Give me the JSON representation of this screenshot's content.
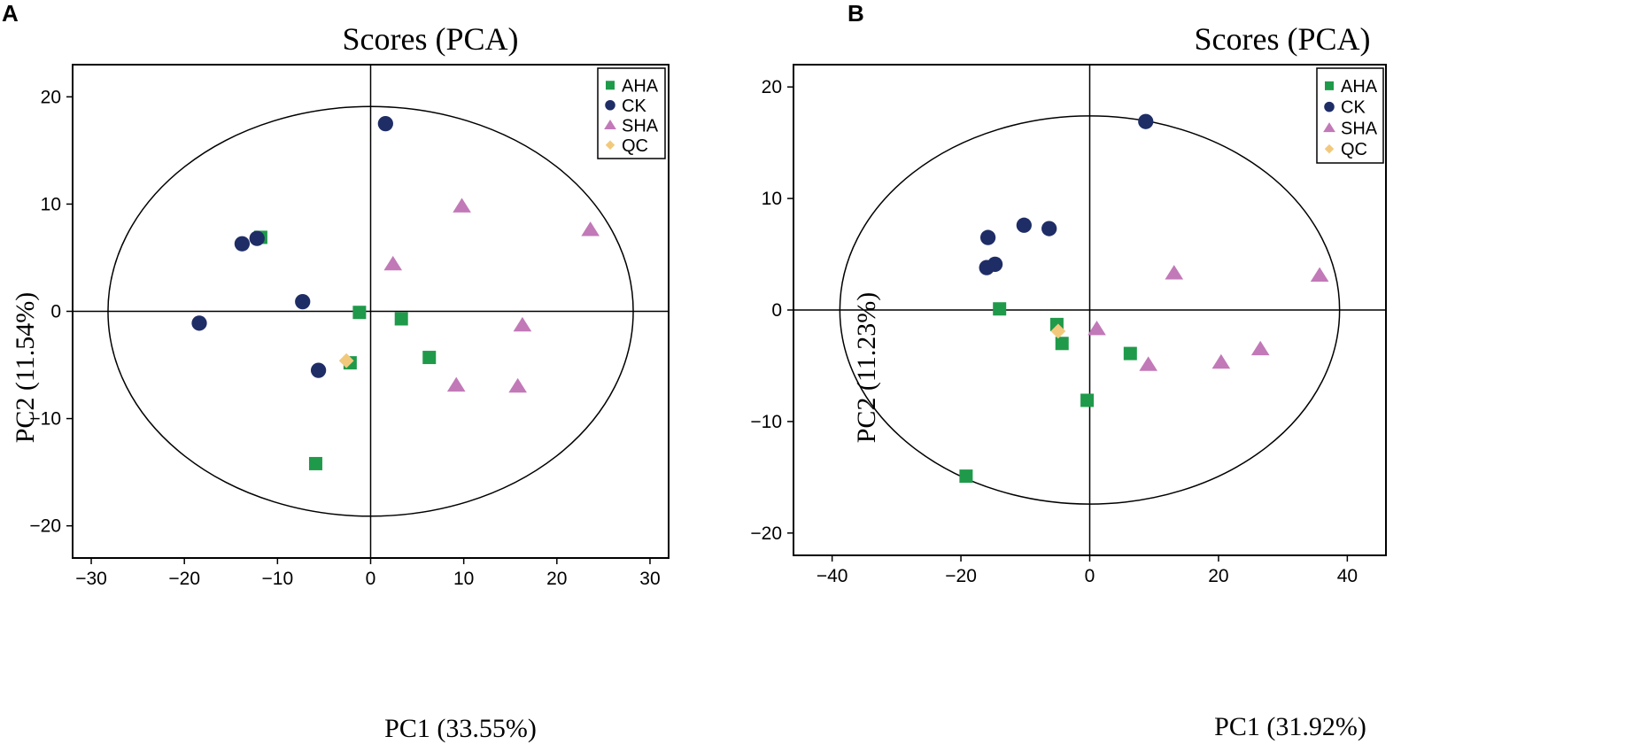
{
  "colors": {
    "AHA": "#1f9a4a",
    "CK": "#1f2d66",
    "SHA": "#c279b8",
    "QC": "#f2c97c",
    "axis": "#000000"
  },
  "chart_data": [
    {
      "panel": "A",
      "type": "scatter",
      "title": "Scores (PCA)",
      "xlabel": "PC1 (33.55%)",
      "ylabel": "PC2 (11.54%)",
      "xlim": [
        -32,
        32
      ],
      "ylim": [
        -23,
        23
      ],
      "xticks": [
        -30,
        -20,
        -10,
        0,
        10,
        20,
        30
      ],
      "yticks": [
        -20,
        -10,
        0,
        10,
        20
      ],
      "xtick_labels": [
        "−30",
        "−20",
        "−10",
        "0",
        "10",
        "20",
        "30"
      ],
      "ytick_labels": [
        "−20",
        "−10",
        "0",
        "10",
        "20"
      ],
      "ellipse": {
        "cx": 0,
        "cy": 0,
        "rx": 28.2,
        "ry": 19.1
      },
      "legend": [
        "AHA",
        "CK",
        "SHA",
        "QC"
      ],
      "legend_position": "top-right",
      "series": [
        {
          "name": "AHA",
          "marker": "square",
          "points": [
            [
              -11.8,
              6.9
            ],
            [
              -1.2,
              -0.1
            ],
            [
              3.3,
              -0.7
            ],
            [
              6.3,
              -4.3
            ],
            [
              -2.2,
              -4.8
            ],
            [
              -5.9,
              -14.2
            ]
          ]
        },
        {
          "name": "CK",
          "marker": "circle",
          "points": [
            [
              1.6,
              17.5
            ],
            [
              -13.8,
              6.3
            ],
            [
              -12.2,
              6.8
            ],
            [
              -7.3,
              0.9
            ],
            [
              -18.4,
              -1.1
            ],
            [
              -5.6,
              -5.5
            ]
          ]
        },
        {
          "name": "SHA",
          "marker": "triangle",
          "points": [
            [
              9.8,
              9.8
            ],
            [
              23.6,
              7.6
            ],
            [
              2.4,
              4.4
            ],
            [
              16.3,
              -1.3
            ],
            [
              9.2,
              -6.9
            ],
            [
              15.8,
              -7.0
            ]
          ]
        },
        {
          "name": "QC",
          "marker": "diamond",
          "points": [
            [
              -2.6,
              -4.6
            ]
          ]
        }
      ]
    },
    {
      "panel": "B",
      "type": "scatter",
      "title": "Scores (PCA)",
      "xlabel": "PC1 (31.92%)",
      "ylabel": "PC2 (11.23%)",
      "xlim": [
        -46,
        46
      ],
      "ylim": [
        -22,
        22
      ],
      "xticks": [
        -40,
        -20,
        0,
        20,
        40
      ],
      "yticks": [
        -20,
        -10,
        0,
        10,
        20
      ],
      "xtick_labels": [
        "−40",
        "−20",
        "0",
        "20",
        "40"
      ],
      "ytick_labels": [
        "−20",
        "−10",
        "0",
        "10",
        "20"
      ],
      "ellipse": {
        "cx": 0,
        "cy": 0,
        "rx": 38.8,
        "ry": 17.4
      },
      "legend": [
        "AHA",
        "CK",
        "SHA",
        "QC"
      ],
      "legend_position": "top-right",
      "series": [
        {
          "name": "AHA",
          "marker": "square",
          "points": [
            [
              -14.0,
              0.1
            ],
            [
              -5.1,
              -1.3
            ],
            [
              -4.3,
              -3.0
            ],
            [
              6.3,
              -3.9
            ],
            [
              -0.4,
              -8.1
            ],
            [
              -19.2,
              -14.9
            ]
          ]
        },
        {
          "name": "CK",
          "marker": "circle",
          "points": [
            [
              8.7,
              16.9
            ],
            [
              -10.2,
              7.6
            ],
            [
              -6.3,
              7.3
            ],
            [
              -15.8,
              6.5
            ],
            [
              -14.7,
              4.1
            ],
            [
              -16.0,
              3.8
            ]
          ]
        },
        {
          "name": "SHA",
          "marker": "triangle",
          "points": [
            [
              13.1,
              3.3
            ],
            [
              35.7,
              3.1
            ],
            [
              1.1,
              -1.7
            ],
            [
              9.1,
              -4.9
            ],
            [
              20.4,
              -4.7
            ],
            [
              26.5,
              -3.5
            ]
          ]
        },
        {
          "name": "QC",
          "marker": "diamond",
          "points": [
            [
              -4.9,
              -1.9
            ]
          ]
        }
      ]
    }
  ],
  "panels": [
    {
      "letter": "A",
      "title": "Scores (PCA)",
      "xlabel": "PC1 (33.55%)",
      "ylabel": "PC2 (11.54%)"
    },
    {
      "letter": "B",
      "title": "Scores (PCA)",
      "xlabel": "PC1 (31.92%)",
      "ylabel": "PC2 (11.23%)"
    }
  ]
}
